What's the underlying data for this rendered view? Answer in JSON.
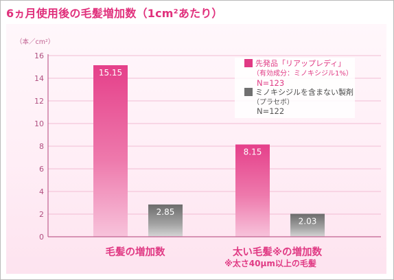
{
  "title": "6ヵ月使用後の毛髪増加数（1cm²あたり）",
  "colors": {
    "title": "#e0307c",
    "brand": "#e03a84",
    "placebo": "#707070",
    "axis": "#c06090",
    "grid": "#f2bcd3"
  },
  "chart_data": {
    "type": "bar",
    "unit_label": "（本／cm²）",
    "ylim": [
      0,
      16
    ],
    "yticks": [
      0,
      2,
      4,
      6,
      8,
      10,
      12,
      14,
      16
    ],
    "grid": true,
    "legend_position": "top-right",
    "categories": [
      {
        "label": "毛髪の増加数",
        "note": ""
      },
      {
        "label": "太い毛髪※の増加数",
        "note": "※太さ40μm以上の毛髪"
      }
    ],
    "series": [
      {
        "name": "先発品「リアップレディ」",
        "detail": "（有効成分：ミノキシジル1%）",
        "n": "N=123",
        "values": [
          15.15,
          8.15
        ],
        "labels": [
          "15.15",
          "8.15"
        ]
      },
      {
        "name": "ミノキシジルを含まない製剤",
        "detail": "（プラセボ）",
        "n": "N=122",
        "values": [
          2.85,
          2.03
        ],
        "labels": [
          "2.85",
          "2.03"
        ]
      }
    ]
  }
}
